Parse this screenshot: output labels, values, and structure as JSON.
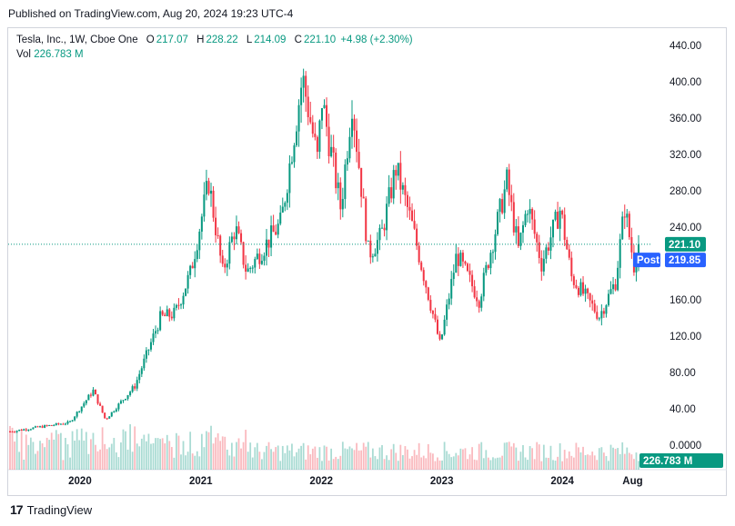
{
  "caption": "Published on TradingView.com, Aug 20, 2024 19:23 UTC-4",
  "legend": {
    "symbol": "Tesla, Inc., 1W, Cboe One",
    "open_label": "O",
    "open": "217.07",
    "high_label": "H",
    "high": "228.22",
    "low_label": "L",
    "low": "214.09",
    "close_label": "C",
    "close": "221.10",
    "change": "+4.98 (+2.30%)",
    "vol_label": "Vol",
    "vol": "226.783 M"
  },
  "badges": {
    "last_price": "221.10",
    "post_label": "Post",
    "post_price": "219.85",
    "volume": "226.783 M"
  },
  "footer": {
    "logo_mark": "17",
    "logo_text": "TradingView"
  },
  "colors": {
    "up": "#089981",
    "down": "#f23645",
    "post": "#2962ff",
    "price_line": "#089981"
  },
  "chart_data": {
    "type": "candlestick",
    "y_ticks": [
      "440.00",
      "400.00",
      "360.00",
      "320.00",
      "280.00",
      "240.00",
      "200.00",
      "160.00",
      "120.00",
      "80.00",
      "40.00",
      "0.0000"
    ],
    "y_tick_values": [
      440,
      400,
      360,
      320,
      280,
      240,
      200,
      160,
      120,
      80,
      40,
      0
    ],
    "x_ticks": [
      "2020",
      "2021",
      "2022",
      "2023",
      "2024",
      "Aug"
    ],
    "x_tick_dates": [
      "2020-01-01",
      "2021-01-01",
      "2022-01-01",
      "2023-01-01",
      "2024-01-01",
      "2024-08-01"
    ],
    "ylim": [
      0,
      440
    ],
    "last_price": 221.1,
    "post_price": 219.85,
    "anchors": [
      [
        "2019-06-03",
        15
      ],
      [
        "2019-12-01",
        25
      ],
      [
        "2020-02-10",
        60
      ],
      [
        "2020-03-18",
        28
      ],
      [
        "2020-06-15",
        65
      ],
      [
        "2020-08-31",
        140
      ],
      [
        "2020-10-15",
        145
      ],
      [
        "2020-12-01",
        190
      ],
      [
        "2021-01-25",
        290
      ],
      [
        "2021-03-08",
        190
      ],
      [
        "2021-04-15",
        240
      ],
      [
        "2021-05-20",
        190
      ],
      [
        "2021-07-15",
        220
      ],
      [
        "2021-09-01",
        245
      ],
      [
        "2021-11-05",
        405
      ],
      [
        "2021-12-20",
        315
      ],
      [
        "2022-01-03",
        380
      ],
      [
        "2022-03-01",
        260
      ],
      [
        "2022-04-04",
        380
      ],
      [
        "2022-05-24",
        210
      ],
      [
        "2022-07-01",
        230
      ],
      [
        "2022-08-15",
        305
      ],
      [
        "2022-10-01",
        245
      ],
      [
        "2022-12-27",
        110
      ],
      [
        "2023-02-15",
        210
      ],
      [
        "2023-04-24",
        160
      ],
      [
        "2023-07-17",
        290
      ],
      [
        "2023-08-21",
        215
      ],
      [
        "2023-09-18",
        265
      ],
      [
        "2023-10-30",
        200
      ],
      [
        "2023-12-26",
        260
      ],
      [
        "2024-01-29",
        185
      ],
      [
        "2024-04-22",
        142
      ],
      [
        "2024-06-10",
        180
      ],
      [
        "2024-07-08",
        262
      ],
      [
        "2024-08-05",
        198
      ],
      [
        "2024-08-19",
        221.1
      ]
    ],
    "volume_scale_max_m": 1800,
    "last_volume_m": 226.783
  }
}
